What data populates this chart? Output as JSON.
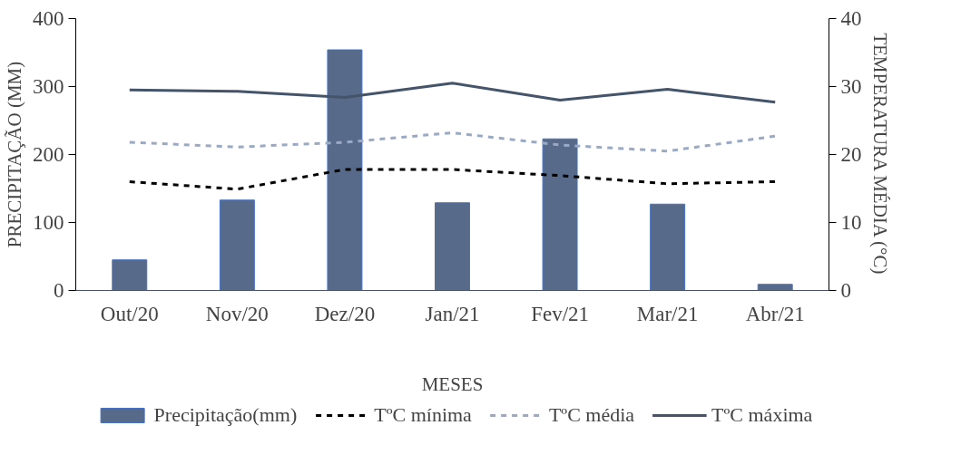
{
  "chart_data": {
    "type": "bar",
    "xlabel": "MESES",
    "ylabel": "PRECIPITAÇÃO (MM)",
    "y2label": "TEMPERATURA MÉDIA (°C)",
    "categories": [
      "Out/20",
      "Nov/20",
      "Dez/20",
      "Jan/21",
      "Fev/21",
      "Mar/21",
      "Abr/21"
    ],
    "series": [
      {
        "name": "Precipitação(mm)",
        "color": "#586a8a",
        "values": [
          45,
          133,
          354,
          129,
          223,
          127,
          9
        ]
      },
      {
        "name": "TºC mínima",
        "type": "line",
        "axis": "y2",
        "color": "#000000",
        "line_style": "dashed",
        "values": [
          16.0,
          14.9,
          17.8,
          17.8,
          16.9,
          15.7,
          16.0
        ]
      },
      {
        "name": "TºC média",
        "type": "line",
        "axis": "y2",
        "color": "#9aaac4",
        "line_style": "dashed",
        "values": [
          21.8,
          21.1,
          21.8,
          23.2,
          21.4,
          20.5,
          22.7
        ]
      },
      {
        "name": "TºC máxima",
        "type": "line",
        "axis": "y2",
        "color": "#44546a",
        "line_style": "solid",
        "values": [
          29.5,
          29.3,
          28.4,
          30.5,
          28.0,
          29.6,
          27.7
        ]
      }
    ],
    "ylim": [
      0,
      400
    ],
    "yticks": [
      0,
      100,
      200,
      300,
      400
    ],
    "y2lim": [
      0,
      40
    ],
    "y2ticks": [
      0,
      10,
      20,
      30,
      40
    ],
    "grid": false,
    "legend": "bottom"
  }
}
